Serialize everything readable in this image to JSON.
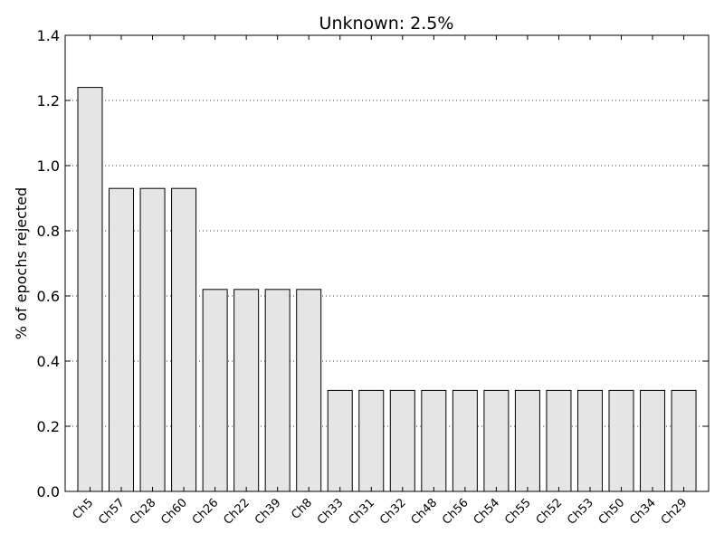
{
  "chart_data": {
    "type": "bar",
    "title": "Unknown: 2.5%",
    "xlabel": "",
    "ylabel": "% of epochs rejected",
    "ylim": [
      0,
      1.4
    ],
    "yticks": [
      0.0,
      0.2,
      0.4,
      0.6,
      0.8,
      1.0,
      1.2,
      1.4
    ],
    "ytick_labels": [
      "0.0",
      "0.2",
      "0.4",
      "0.6",
      "0.8",
      "1.0",
      "1.2",
      "1.4"
    ],
    "grid": "y-dotted",
    "legend": "none",
    "categories": [
      "Ch5",
      "Ch57",
      "Ch28",
      "Ch60",
      "Ch26",
      "Ch22",
      "Ch39",
      "Ch8",
      "Ch33",
      "Ch31",
      "Ch32",
      "Ch48",
      "Ch56",
      "Ch54",
      "Ch55",
      "Ch52",
      "Ch53",
      "Ch50",
      "Ch34",
      "Ch29"
    ],
    "values": [
      1.24,
      0.93,
      0.93,
      0.93,
      0.62,
      0.62,
      0.62,
      0.62,
      0.31,
      0.31,
      0.31,
      0.31,
      0.31,
      0.31,
      0.31,
      0.31,
      0.31,
      0.31,
      0.31,
      0.31
    ],
    "bar_color": "#e5e5e5",
    "edge_color": "#000000"
  }
}
